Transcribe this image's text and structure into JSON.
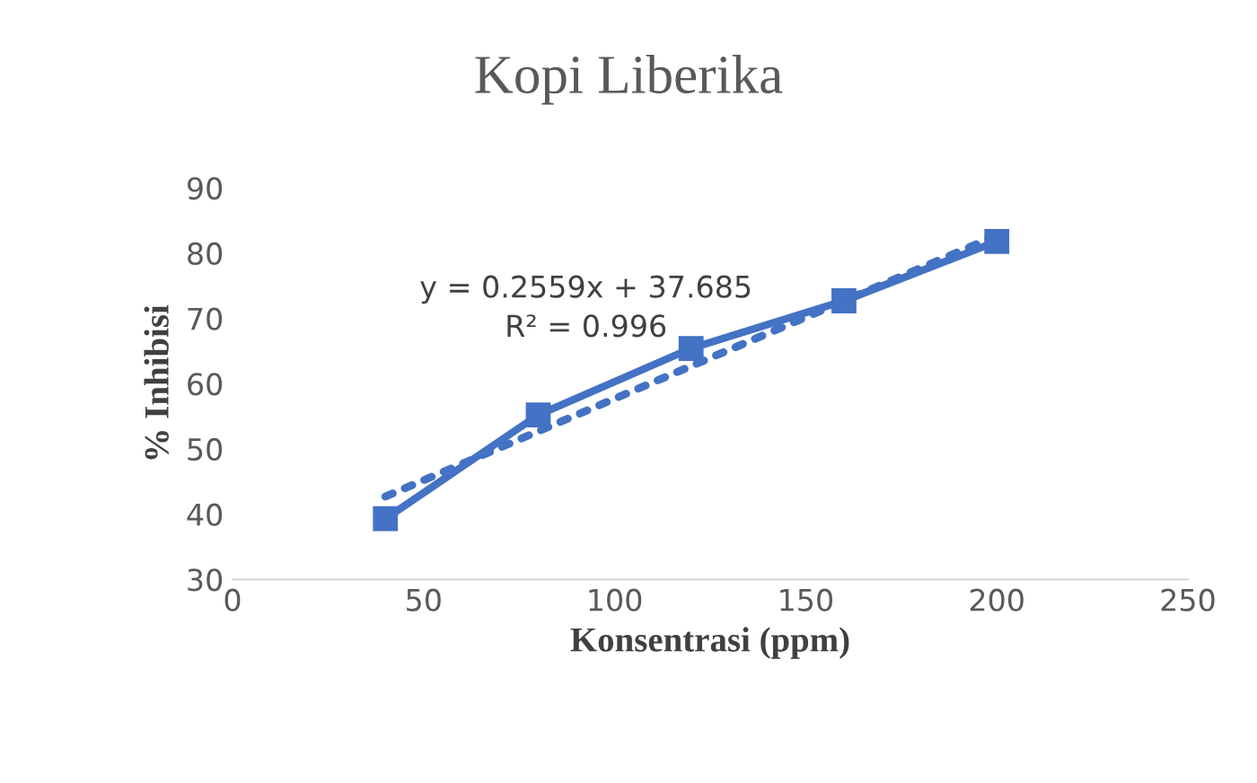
{
  "chart_data": {
    "type": "line",
    "title": "Kopi Liberika",
    "xlabel": "Konsentrasi (ppm)",
    "ylabel": "% Inhibisi",
    "x": [
      40,
      80,
      120,
      160,
      200
    ],
    "series": [
      {
        "color": "#4472c4",
        "marker": "square",
        "line_style": "solid",
        "values": [
          39.3,
          55.2,
          65.4,
          72.7,
          81.8
        ]
      },
      {
        "type": "line",
        "color": "#4472c4",
        "marker": "none",
        "line_style": "dotted",
        "x": [
          40,
          200
        ],
        "values": [
          42.7,
          82.7
        ]
      }
    ],
    "annotations": [
      "y = 0.2559x + 37.685",
      "R² = 0.996"
    ],
    "xlim": [
      0,
      250
    ],
    "xticks": [
      0,
      50,
      100,
      150,
      200,
      250
    ],
    "ylim": [
      30,
      90
    ],
    "yticks": [
      30,
      40,
      50,
      60,
      70,
      80,
      90
    ],
    "grid": false,
    "legend": false
  }
}
